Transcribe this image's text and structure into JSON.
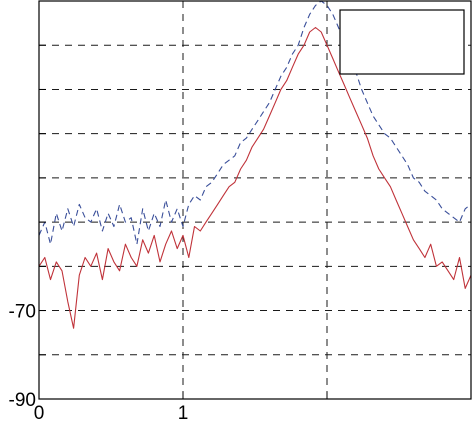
{
  "chart_data": {
    "type": "line",
    "title": "",
    "xlabel": "",
    "ylabel": "",
    "xlim": [
      0,
      3
    ],
    "ylim": [
      -90,
      0
    ],
    "x_ticks": [
      0,
      1,
      2,
      3
    ],
    "x_tick_labels": [
      "0",
      "1",
      "",
      ""
    ],
    "y_ticks": [
      -90,
      -80,
      -70,
      -60,
      -50,
      -40,
      -30,
      -20,
      -10,
      0
    ],
    "y_tick_labels": [
      "-90",
      "",
      "-70",
      "",
      "",
      "",
      "",
      "",
      "",
      ""
    ],
    "grid": true,
    "legend": {
      "placement": "top-right",
      "entries": []
    },
    "colors": {
      "series_blue": "#3a4f9a",
      "series_red": "#c0333a",
      "grid": "#1a1a1a"
    },
    "series": [
      {
        "style": "dashed",
        "color": "#3a4f9a",
        "x": [
          0.0,
          0.04,
          0.08,
          0.12,
          0.16,
          0.2,
          0.24,
          0.28,
          0.32,
          0.36,
          0.4,
          0.44,
          0.48,
          0.52,
          0.56,
          0.6,
          0.64,
          0.68,
          0.72,
          0.76,
          0.8,
          0.84,
          0.88,
          0.92,
          0.96,
          1.0,
          1.04,
          1.08,
          1.12,
          1.16,
          1.2,
          1.24,
          1.28,
          1.32,
          1.36,
          1.4,
          1.44,
          1.48,
          1.52,
          1.56,
          1.6,
          1.64,
          1.68,
          1.72,
          1.76,
          1.8,
          1.84,
          1.88,
          1.92,
          1.96,
          2.0,
          2.04,
          2.08,
          2.12,
          2.16,
          2.2,
          2.24,
          2.28,
          2.32,
          2.36,
          2.4,
          2.44,
          2.48,
          2.52,
          2.56,
          2.6,
          2.64,
          2.68,
          2.72,
          2.76,
          2.8,
          2.84,
          2.88,
          2.92,
          2.96,
          3.0
        ],
        "y": [
          -53,
          -50,
          -55,
          -48,
          -52,
          -47,
          -51,
          -46,
          -49,
          -50,
          -47,
          -52,
          -48,
          -51,
          -46,
          -50,
          -49,
          -55,
          -47,
          -52,
          -48,
          -51,
          -45,
          -50,
          -47,
          -51,
          -46,
          -44,
          -45,
          -42,
          -41,
          -39,
          -37,
          -36,
          -35,
          -32,
          -31,
          -29,
          -27,
          -25,
          -23,
          -20,
          -17,
          -15,
          -12,
          -10,
          -6,
          -3,
          -1,
          0,
          -1,
          -3,
          -6,
          -10,
          -13,
          -16,
          -20,
          -23,
          -26,
          -28,
          -30,
          -31,
          -33,
          -35,
          -37,
          -40,
          -41,
          -43,
          -44,
          -45,
          -47,
          -48,
          -49,
          -50,
          -47,
          -46
        ]
      },
      {
        "style": "solid",
        "color": "#c0333a",
        "x": [
          0.0,
          0.04,
          0.08,
          0.12,
          0.16,
          0.2,
          0.24,
          0.28,
          0.32,
          0.36,
          0.4,
          0.44,
          0.48,
          0.52,
          0.56,
          0.6,
          0.64,
          0.68,
          0.72,
          0.76,
          0.8,
          0.84,
          0.88,
          0.92,
          0.96,
          1.0,
          1.04,
          1.08,
          1.12,
          1.16,
          1.2,
          1.24,
          1.28,
          1.32,
          1.36,
          1.4,
          1.44,
          1.48,
          1.52,
          1.56,
          1.6,
          1.64,
          1.68,
          1.72,
          1.76,
          1.8,
          1.84,
          1.88,
          1.92,
          1.96,
          2.0,
          2.04,
          2.08,
          2.12,
          2.16,
          2.2,
          2.24,
          2.28,
          2.32,
          2.36,
          2.4,
          2.44,
          2.48,
          2.52,
          2.56,
          2.6,
          2.64,
          2.68,
          2.72,
          2.76,
          2.8,
          2.84,
          2.88,
          2.92,
          2.96,
          3.0
        ],
        "y": [
          -60,
          -58,
          -63,
          -59,
          -61,
          -68,
          -74,
          -62,
          -58,
          -60,
          -57,
          -63,
          -56,
          -59,
          -61,
          -55,
          -58,
          -60,
          -54,
          -57,
          -53,
          -59,
          -55,
          -52,
          -56,
          -53,
          -58,
          -51,
          -52,
          -50,
          -48,
          -46,
          -44,
          -42,
          -41,
          -38,
          -36,
          -33,
          -31,
          -29,
          -26,
          -23,
          -20,
          -18,
          -15,
          -12,
          -10,
          -7,
          -6,
          -7,
          -10,
          -13,
          -16,
          -19,
          -22,
          -25,
          -28,
          -31,
          -35,
          -38,
          -40,
          -42,
          -45,
          -48,
          -51,
          -54,
          -56,
          -58,
          -55,
          -60,
          -59,
          -61,
          -63,
          -58,
          -65,
          -62
        ]
      }
    ]
  }
}
